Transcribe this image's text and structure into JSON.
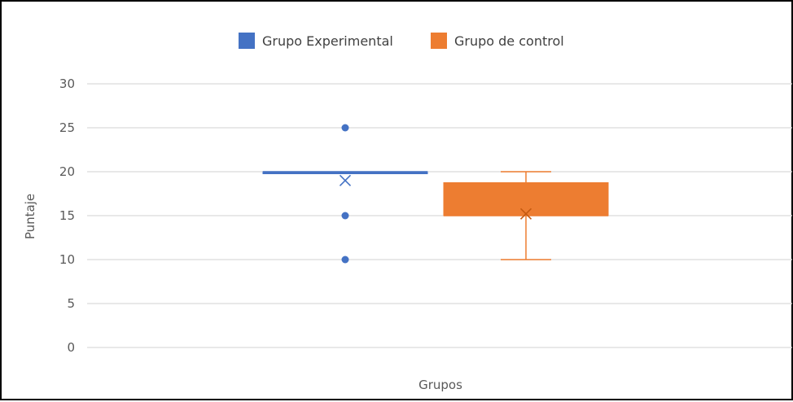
{
  "chart_data": {
    "type": "box",
    "title": "",
    "xlabel": "Grupos",
    "ylabel": "Puntaje",
    "ylim": [
      0,
      30
    ],
    "yticks": [
      0,
      5,
      10,
      15,
      20,
      25,
      30
    ],
    "yticks_labels": [
      "0",
      "5",
      "10",
      "15",
      "20",
      "25",
      "30"
    ],
    "grid": true,
    "legend_position": "top",
    "series": [
      {
        "name": "Grupo Experimental",
        "color": "#4472C4",
        "min": 20,
        "q1": 20,
        "median": 20,
        "q3": 20,
        "max": 20,
        "mean": 19,
        "outliers": [
          25,
          15,
          10
        ]
      },
      {
        "name": "Grupo de control",
        "color": "#ED7D31",
        "min": 10,
        "q1": 15,
        "median": 15,
        "q3": 18.75,
        "max": 20,
        "mean": 15.2,
        "outliers": []
      }
    ]
  }
}
